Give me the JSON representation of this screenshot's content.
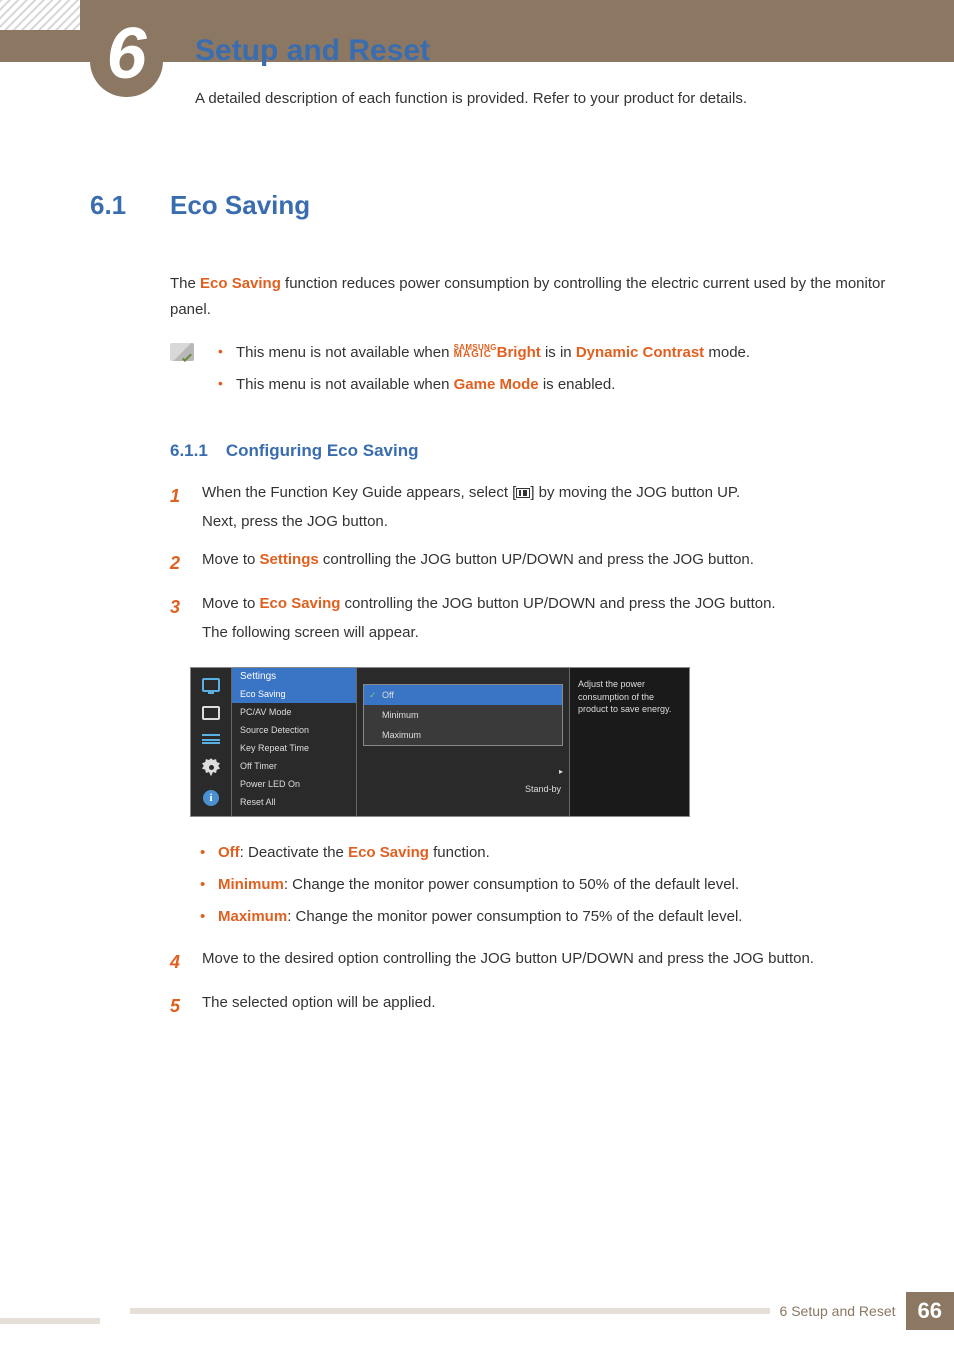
{
  "chapter": {
    "number": "6",
    "title": "Setup and Reset",
    "subtitle": "A detailed description of each function is provided. Refer to your product for details."
  },
  "section": {
    "number": "6.1",
    "title": "Eco Saving",
    "intro_pre": "The ",
    "intro_hl": "Eco Saving",
    "intro_post": " function reduces power consumption by controlling the electric current used by the monitor panel."
  },
  "notes": {
    "n1_pre": "This menu is not available when ",
    "n1_magic_top": "SAMSUNG",
    "n1_magic_bot": "MAGIC",
    "n1_bright": "Bright",
    "n1_mid": " is in ",
    "n1_hl": "Dynamic Contrast",
    "n1_post": " mode.",
    "n2_pre": "This menu is not available when ",
    "n2_hl": "Game Mode",
    "n2_post": " is enabled."
  },
  "subsection": {
    "number": "6.1.1",
    "title": "Configuring Eco Saving"
  },
  "steps": {
    "s1n": "1",
    "s1a": "When the Function Key Guide appears, select [",
    "s1b": "] by moving the JOG button UP.",
    "s1c": "Next, press the JOG button.",
    "s2n": "2",
    "s2a": "Move to ",
    "s2hl": "Settings",
    "s2b": " controlling the JOG button UP/DOWN and press the JOG button.",
    "s3n": "3",
    "s3a": "Move to ",
    "s3hl": "Eco Saving",
    "s3b": " controlling the JOG button UP/DOWN and press the JOG button.",
    "s3c": "The following screen will appear.",
    "s4n": "4",
    "s4": "Move to the desired option controlling the JOG button UP/DOWN and press the JOG button.",
    "s5n": "5",
    "s5": "The selected option will be applied."
  },
  "osd": {
    "header": "Settings",
    "items": [
      "Eco Saving",
      "PC/AV Mode",
      "Source Detection",
      "Key Repeat Time",
      "Off Timer",
      "Power LED On",
      "Reset All"
    ],
    "options": [
      "Off",
      "Minimum",
      "Maximum"
    ],
    "standby": "Stand-by",
    "hint": "Adjust the power consumption of the product to save energy.",
    "arrow": "▸",
    "colors": {
      "panel_bg": "#2a2a2a",
      "highlight": "#3a74c4",
      "border": "#888888",
      "hint_bg": "#1a1a1a",
      "text": "#dddddd",
      "check": "#7ec47e",
      "icon_blue": "#5ab0e0"
    }
  },
  "opts": {
    "o1hl": "Off",
    "o1mid": ": Deactivate the ",
    "o1hl2": "Eco Saving",
    "o1post": " function.",
    "o2hl": "Minimum",
    "o2": ": Change the monitor power consumption to 50% of the default level.",
    "o3hl": "Maximum",
    "o3": ": Change the monitor power consumption to 75% of the default level."
  },
  "footer": {
    "text": "6 Setup and Reset",
    "page": "66"
  },
  "colors": {
    "brand": "#8b7762",
    "blue": "#3a6db0",
    "orange": "#e06020"
  }
}
